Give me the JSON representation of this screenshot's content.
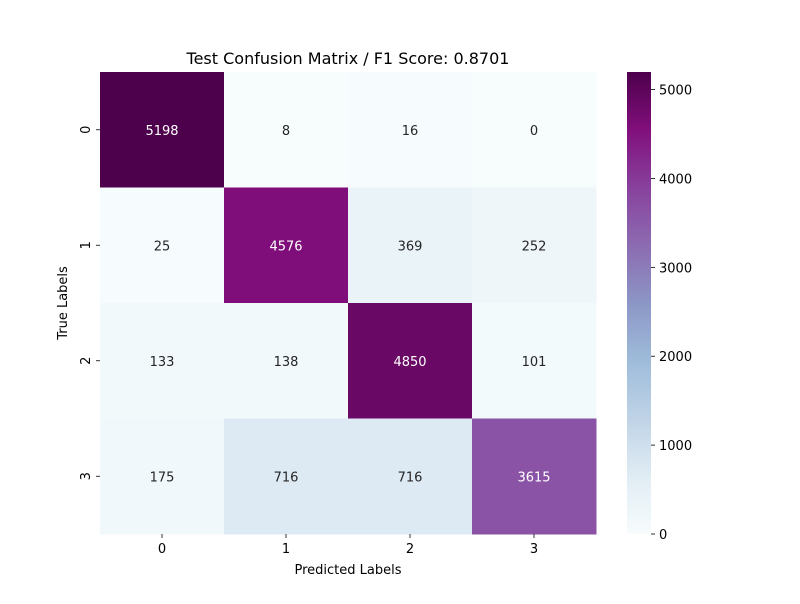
{
  "chart_data": {
    "type": "heatmap",
    "title": "Test Confusion Matrix / F1 Score: 0.8701",
    "xlabel": "Predicted Labels",
    "ylabel": "True Labels",
    "x_categories": [
      "0",
      "1",
      "2",
      "3"
    ],
    "y_categories": [
      "0",
      "1",
      "2",
      "3"
    ],
    "values": [
      [
        5198,
        8,
        16,
        0
      ],
      [
        25,
        4576,
        369,
        252
      ],
      [
        133,
        138,
        4850,
        101
      ],
      [
        175,
        716,
        716,
        3615
      ]
    ],
    "colorbar": {
      "colormap": "BuPu",
      "vmin": 0,
      "vmax": 5198,
      "ticks": [
        0,
        1000,
        2000,
        3000,
        4000,
        5000
      ]
    },
    "grid": false
  }
}
